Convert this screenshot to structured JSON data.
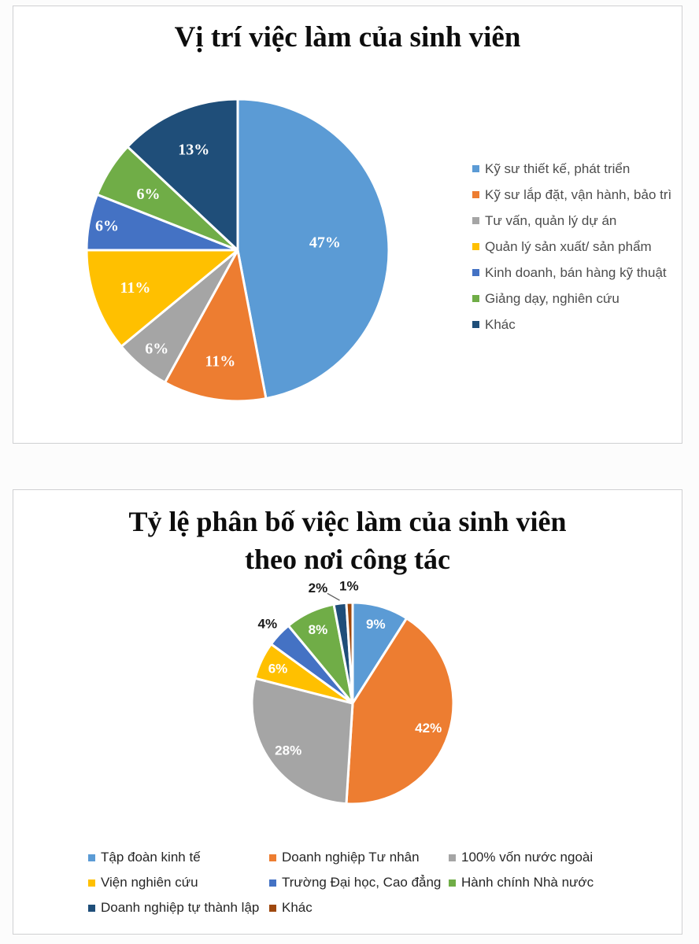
{
  "chart_data": [
    {
      "type": "pie",
      "title": "Vị trí việc làm của sinh viên",
      "start_angle_deg": 0,
      "direction": "clockwise",
      "legend_position": "right",
      "data_label_format": "percent",
      "data_label_color": "#ffffff",
      "slices": [
        {
          "label": "Kỹ sư thiết kế, phát triển",
          "value": 47,
          "color": "#5B9BD5",
          "label_placement": "inside",
          "label_ratio": 0.58
        },
        {
          "label": "Kỹ sư lắp đặt, vận hành, bảo trì",
          "value": 11,
          "color": "#ED7D31",
          "label_placement": "inside",
          "label_ratio": 0.74
        },
        {
          "label": "Tư vấn, quản lý dự án",
          "value": 6,
          "color": "#A5A5A5",
          "label_placement": "inside",
          "label_ratio": 0.84
        },
        {
          "label": "Quản lý sản xuất/ sản phẩm",
          "value": 11,
          "color": "#FFC000",
          "label_placement": "inside",
          "label_ratio": 0.72
        },
        {
          "label": "Kinh doanh, bán hàng kỹ thuật",
          "value": 6,
          "color": "#4472C4",
          "label_placement": "inside",
          "label_ratio": 0.88
        },
        {
          "label": "Giảng dạy, nghiên cứu",
          "value": 6,
          "color": "#70AD47",
          "label_placement": "inside",
          "label_ratio": 0.7
        },
        {
          "label": "Khác",
          "value": 13,
          "color": "#1F4E79",
          "label_placement": "inside",
          "label_ratio": 0.73
        }
      ]
    },
    {
      "type": "pie",
      "title": "Tỷ lệ phân bố việc làm của sinh viên theo nơi công tác",
      "title_lines": [
        "Tỷ lệ phân bố việc làm của sinh viên",
        "theo nơi công tác"
      ],
      "start_angle_deg": 0,
      "direction": "clockwise",
      "legend_position": "bottom",
      "data_label_format": "percent",
      "data_label_color": "#ffffff",
      "slices": [
        {
          "label": "Tập đoàn kinh tế",
          "value": 9,
          "color": "#5B9BD5",
          "label_placement": "inside",
          "label_ratio": 0.82,
          "label_color": "#ffffff"
        },
        {
          "label": "Doanh nghiệp Tư nhân",
          "value": 42,
          "color": "#ED7D31",
          "label_placement": "inside",
          "label_ratio": 0.79,
          "label_color": "#ffffff"
        },
        {
          "label": "100% vốn nước ngoài",
          "value": 28,
          "color": "#A5A5A5",
          "label_placement": "inside",
          "label_ratio": 0.79,
          "label_color": "#ffffff"
        },
        {
          "label": "Viện nghiên cứu",
          "value": 6,
          "color": "#FFC000",
          "label_placement": "inside",
          "label_ratio": 0.82,
          "label_color": "#ffffff"
        },
        {
          "label": "Trường Đại học, Cao đẳng",
          "value": 4,
          "color": "#4472C4",
          "label_placement": "outside",
          "label_ratio": 1.16,
          "label_color": "#1a1a1a"
        },
        {
          "label": "Hành chính Nhà nước",
          "value": 8,
          "color": "#70AD47",
          "label_placement": "inside",
          "label_ratio": 0.81,
          "label_color": "#ffffff"
        },
        {
          "label": "Doanh nghiệp tự thành lập",
          "value": 2,
          "color": "#1F4E79",
          "label_placement": "outside",
          "label_ratio": 1.25,
          "label_dx": -24,
          "label_dy": 12,
          "leader_line": true,
          "label_color": "#1a1a1a"
        },
        {
          "label": "Khác",
          "value": 1,
          "color": "#9E480E",
          "label_placement": "outside",
          "label_ratio": 1.17,
          "label_color": "#1a1a1a"
        }
      ]
    }
  ]
}
